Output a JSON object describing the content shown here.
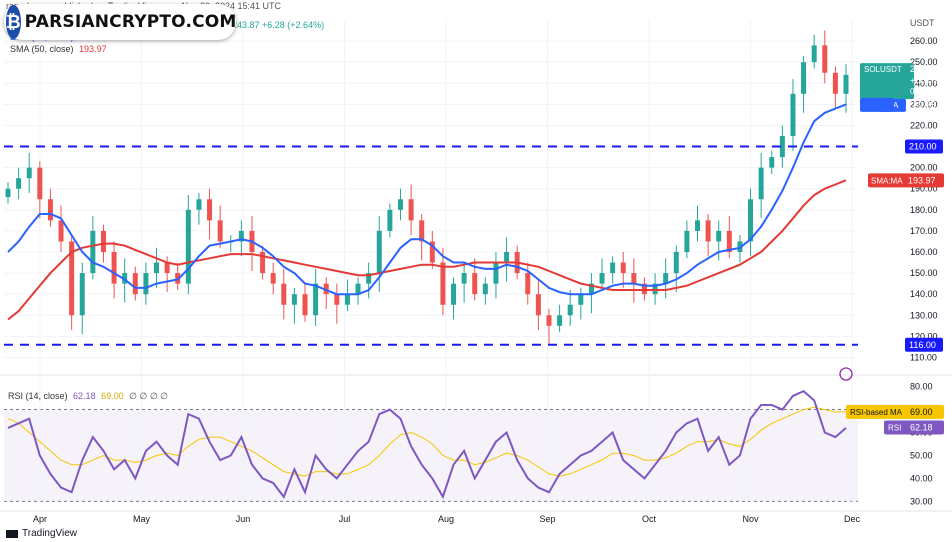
{
  "header": {
    "publisher": "ranadeeper published on TradingView.com, Nov 29, 2024 15:41 UTC",
    "price_change": "243.87 +6.28 (+2.64%)"
  },
  "watermark": {
    "name": "PARSIANCRYPTO.COM"
  },
  "legend": {
    "ema_label": "EMA (20, close)",
    "ema_value": "229.75",
    "sma_label": "SMA (50, close)",
    "sma_value": "193.97",
    "rsi_label": "RSI (14, close)",
    "rsi_value": "62.18",
    "rsi_ma_value": "69.00",
    "rsi_extra": "∅ ∅ ∅ ∅"
  },
  "axis_tags": {
    "currency": "USDT",
    "symbol": "SOLUSDT",
    "price": "243.87",
    "change_pct": "+27.17%",
    "countdown": "08:18:16",
    "ema_tag": "EMA",
    "ema_val": "229.75",
    "level_high": "210.00",
    "sma_tag": "SMA:MA",
    "sma_val": "193.97",
    "level_low": "116.00",
    "rsi_ma_tag": "RSI-based MA",
    "rsi_ma_val": "69.00",
    "rsi_tag": "RSI",
    "rsi_val": "62.18"
  },
  "footer": {
    "brand": "TradingView"
  },
  "colors": {
    "up": "#26a69a",
    "down": "#ef5350",
    "ema": "#2962ff",
    "sma": "#e53935",
    "rsi": "#7e57c2",
    "rsi_ma": "#f7c600",
    "level": "#1a1aff",
    "tag_bg": "#26a69a"
  },
  "chart_data": [
    {
      "type": "candlestick",
      "title": "SOLUSDT",
      "x_ticks": [
        "Apr",
        "May",
        "Jun",
        "Jul",
        "Aug",
        "Sep",
        "Oct",
        "Nov",
        "Dec"
      ],
      "y_ticks": [
        "260.00",
        "250.00",
        "240.00",
        "230.00",
        "220.00",
        "210.00",
        "200.00",
        "190.00",
        "180.00",
        "170.00",
        "160.00",
        "150.00",
        "140.00",
        "130.00",
        "120.00",
        "110.00"
      ],
      "ylim": [
        105,
        270
      ],
      "horizontal_levels": [
        210,
        116
      ],
      "closes": [
        190,
        195,
        200,
        185,
        175,
        165,
        130,
        150,
        170,
        160,
        145,
        150,
        140,
        150,
        155,
        150,
        145,
        180,
        185,
        175,
        165,
        165,
        170,
        160,
        150,
        145,
        135,
        140,
        130,
        145,
        140,
        135,
        140,
        145,
        150,
        170,
        180,
        185,
        175,
        165,
        155,
        135,
        145,
        150,
        140,
        145,
        155,
        160,
        150,
        140,
        130,
        125,
        130,
        135,
        140,
        145,
        150,
        155,
        150,
        145,
        140,
        145,
        150,
        160,
        170,
        175,
        165,
        170,
        160,
        165,
        185,
        200,
        205,
        215,
        235,
        250,
        258,
        245,
        235,
        244
      ],
      "ema_20": [
        160,
        165,
        172,
        178,
        178,
        176,
        168,
        160,
        155,
        153,
        150,
        147,
        143,
        143,
        145,
        146,
        147,
        152,
        158,
        163,
        164,
        165,
        166,
        165,
        162,
        158,
        153,
        150,
        145,
        144,
        142,
        140,
        140,
        140,
        142,
        148,
        155,
        162,
        166,
        166,
        163,
        158,
        155,
        155,
        153,
        152,
        152,
        154,
        153,
        151,
        147,
        143,
        141,
        140,
        140,
        140,
        142,
        144,
        145,
        145,
        144,
        144,
        145,
        147,
        150,
        154,
        157,
        160,
        161,
        162,
        166,
        172,
        180,
        189,
        200,
        212,
        222,
        226,
        228,
        230
      ],
      "sma_50": [
        128,
        132,
        138,
        144,
        150,
        155,
        160,
        162,
        163,
        164,
        164,
        163,
        161,
        159,
        157,
        155,
        154,
        155,
        156,
        157,
        158,
        159,
        159,
        159,
        158,
        157,
        156,
        155,
        154,
        153,
        152,
        151,
        150,
        149,
        149,
        150,
        151,
        152,
        153,
        154,
        154,
        153,
        153,
        154,
        155,
        155,
        155,
        155,
        155,
        154,
        153,
        151,
        149,
        147,
        145,
        144,
        143,
        142,
        142,
        142,
        142,
        142,
        142,
        143,
        144,
        146,
        148,
        150,
        152,
        154,
        157,
        160,
        165,
        170,
        176,
        182,
        187,
        190,
        192,
        194
      ]
    },
    {
      "type": "line",
      "title": "RSI (14, close)",
      "y_ticks": [
        "80.00",
        "70.00",
        "60.00",
        "50.00",
        "40.00",
        "30.00"
      ],
      "ylim": [
        28,
        82
      ],
      "bands": [
        30,
        70
      ],
      "rsi": [
        62,
        64,
        66,
        50,
        42,
        36,
        34,
        48,
        58,
        52,
        44,
        48,
        40,
        52,
        56,
        50,
        46,
        68,
        66,
        56,
        48,
        50,
        58,
        46,
        40,
        38,
        32,
        44,
        34,
        50,
        44,
        40,
        46,
        52,
        56,
        68,
        70,
        66,
        54,
        46,
        40,
        32,
        46,
        52,
        40,
        48,
        56,
        60,
        48,
        40,
        36,
        34,
        42,
        46,
        50,
        52,
        56,
        60,
        48,
        44,
        40,
        46,
        52,
        60,
        64,
        66,
        52,
        58,
        46,
        50,
        66,
        72,
        72,
        70,
        76,
        78,
        74,
        60,
        58,
        62
      ],
      "rsi_ma": [
        66,
        64,
        60,
        56,
        52,
        48,
        46,
        46,
        48,
        50,
        48,
        48,
        47,
        48,
        50,
        51,
        50,
        54,
        57,
        58,
        58,
        56,
        54,
        52,
        49,
        46,
        43,
        42,
        41,
        43,
        43,
        42,
        42,
        44,
        46,
        50,
        55,
        59,
        60,
        58,
        55,
        50,
        48,
        48,
        46,
        47,
        49,
        51,
        50,
        48,
        45,
        42,
        41,
        42,
        44,
        46,
        48,
        51,
        51,
        50,
        48,
        48,
        49,
        51,
        54,
        56,
        56,
        57,
        55,
        54,
        57,
        61,
        64,
        66,
        68,
        70,
        71,
        70,
        69,
        69
      ]
    }
  ]
}
